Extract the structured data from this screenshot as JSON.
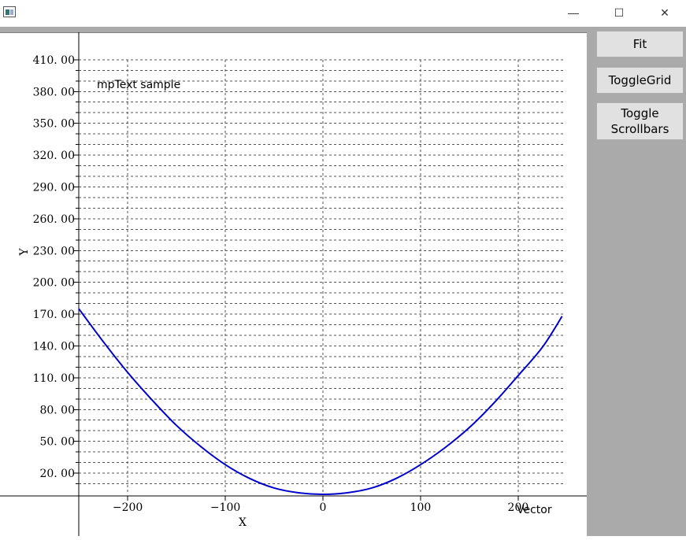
{
  "window": {
    "title": "",
    "controls": {
      "minimize": "—",
      "maximize": "☐",
      "close": "✕"
    }
  },
  "buttons": {
    "fit": "Fit",
    "toggle_grid": "ToggleGrid",
    "toggle_scrollbars_line1": "Toggle",
    "toggle_scrollbars_line2": "Scrollbars"
  },
  "plot": {
    "annotation": "mpText sample",
    "curve_color": "#0000cc"
  },
  "chart_data": {
    "type": "line",
    "xlabel": "X",
    "ylabel": "Y",
    "x_ticks": [
      -200,
      -100,
      0,
      100,
      200
    ],
    "y_ticks": [
      "20.00",
      "50.00",
      "80.00",
      "110.00",
      "140.00",
      "170.00",
      "200.00",
      "230.00",
      "260.00",
      "290.00",
      "320.00",
      "350.00",
      "380.00",
      "410.00"
    ],
    "xlim": [
      -250,
      245
    ],
    "ylim": [
      0,
      410
    ],
    "grid": true,
    "series": [
      {
        "name": "Vector",
        "x": [
          -250,
          -225,
          -200,
          -175,
          -150,
          -125,
          -100,
          -75,
          -50,
          -25,
          0,
          25,
          50,
          75,
          100,
          125,
          150,
          175,
          200,
          225,
          245
        ],
        "y": [
          175,
          144,
          115,
          89,
          65,
          45,
          28,
          15,
          6,
          1.5,
          0,
          1.5,
          6,
          15,
          28,
          44,
          63,
          86,
          112,
          139,
          168
        ]
      }
    ]
  }
}
